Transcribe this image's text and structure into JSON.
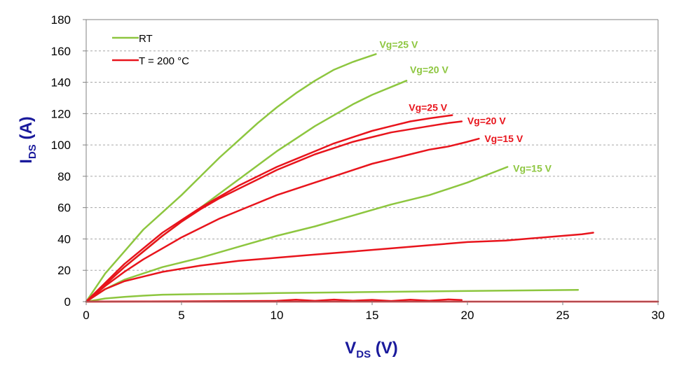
{
  "chart_data": {
    "type": "line",
    "xlabel": {
      "main": "V",
      "sub": "DS",
      "unit": " (V)"
    },
    "ylabel": {
      "main": "I",
      "sub": "DS",
      "unit": "  (A)"
    },
    "xlim": [
      0,
      30
    ],
    "ylim": [
      0,
      180
    ],
    "xticks": [
      0,
      5,
      10,
      15,
      20,
      25,
      30
    ],
    "yticks": [
      0,
      20,
      40,
      60,
      80,
      100,
      120,
      140,
      160,
      180
    ],
    "grid": "horizontal dashed",
    "legend_position": "top-left",
    "legend": [
      {
        "label": "RT",
        "color": "#8dc63f"
      },
      {
        "label": "T = 200 °C",
        "color": "#e8141c"
      }
    ],
    "series": [
      {
        "label": "Vg=25 V",
        "group": "RT",
        "color": "#8dc63f",
        "x": [
          0,
          1,
          2,
          3,
          4,
          5,
          6,
          7,
          8,
          9,
          10,
          11,
          12,
          13,
          14,
          15.2
        ],
        "y": [
          0,
          18,
          32,
          46,
          57,
          68,
          80,
          92,
          103,
          114,
          124,
          133,
          141,
          148,
          153,
          158
        ]
      },
      {
        "label": "Vg=20 V",
        "group": "RT",
        "color": "#8dc63f",
        "x": [
          0,
          1,
          2,
          3,
          4,
          5,
          6,
          7,
          8,
          9,
          10,
          11,
          12,
          13,
          14,
          15,
          16,
          16.8
        ],
        "y": [
          0,
          11,
          22,
          32,
          42,
          51,
          60,
          69,
          78,
          87,
          96,
          104,
          112,
          119,
          126,
          132,
          137,
          141
        ]
      },
      {
        "label": "Vg=15 V",
        "group": "RT",
        "color": "#8dc63f",
        "x": [
          0,
          1,
          2,
          3,
          4,
          5,
          6,
          8,
          10,
          12,
          14,
          16,
          18,
          20,
          22.1
        ],
        "y": [
          0,
          8,
          14,
          18,
          22,
          25,
          28,
          35,
          42,
          48,
          55,
          62,
          68,
          76,
          86
        ]
      },
      {
        "label": "",
        "group": "RT",
        "color": "#8dc63f",
        "x": [
          0,
          1,
          2,
          3,
          4,
          6,
          8,
          10,
          14,
          18,
          22,
          25.8
        ],
        "y": [
          0,
          2,
          3,
          3.8,
          4.4,
          4.8,
          5,
          5.5,
          6,
          6.5,
          7,
          7.5
        ]
      },
      {
        "label": "Vg=25 V",
        "group": "200C",
        "color": "#e8141c",
        "x": [
          0,
          1,
          2,
          3,
          4,
          5,
          6,
          7,
          8,
          9,
          10,
          11,
          12,
          13,
          14,
          15,
          16,
          17,
          18,
          19.2
        ],
        "y": [
          0,
          12,
          24,
          34,
          44,
          52,
          60,
          67,
          74,
          80,
          86,
          91,
          96,
          101,
          105,
          109,
          112,
          115,
          117,
          119
        ]
      },
      {
        "label": "Vg=20 V",
        "group": "200C",
        "color": "#e8141c",
        "x": [
          0,
          1,
          2,
          3,
          4,
          5,
          6,
          7,
          8,
          9,
          10,
          11,
          12,
          13,
          14,
          15,
          16,
          17,
          18,
          19,
          19.7
        ],
        "y": [
          0,
          11,
          22,
          32,
          42,
          51,
          59,
          66,
          72,
          78,
          84,
          89,
          94,
          98,
          102,
          105,
          108,
          110,
          112,
          114,
          115
        ]
      },
      {
        "label": "Vg=15 V",
        "group": "200C",
        "color": "#e8141c",
        "x": [
          0,
          1,
          2,
          3,
          4,
          5,
          6,
          7,
          8,
          9,
          10,
          11,
          12,
          13,
          14,
          15,
          16,
          17,
          18,
          19,
          20,
          20.6
        ],
        "y": [
          0,
          10,
          19,
          27,
          34,
          41,
          47,
          53,
          58,
          63,
          68,
          72,
          76,
          80,
          84,
          88,
          91,
          94,
          97,
          99,
          102,
          104
        ]
      },
      {
        "label": "",
        "group": "200C",
        "color": "#e8141c",
        "x": [
          0,
          1,
          2,
          3,
          4,
          5,
          6,
          8,
          10,
          12,
          14,
          16,
          18,
          20,
          22,
          24,
          26,
          26.6
        ],
        "y": [
          0,
          8,
          13,
          16,
          19,
          21,
          23,
          26,
          28,
          30,
          32,
          34,
          36,
          38,
          39,
          41,
          43,
          44
        ]
      },
      {
        "label": "",
        "group": "200C",
        "color": "#e8141c",
        "x": [
          0,
          5,
          10,
          11,
          12,
          13,
          14,
          15,
          16,
          17,
          18,
          19,
          19.7
        ],
        "y": [
          0,
          0.2,
          0.5,
          1.2,
          0.5,
          1.3,
          0.6,
          1.1,
          0.4,
          1.2,
          0.6,
          1.4,
          1
        ]
      },
      {
        "label": "",
        "group": "200C",
        "color": "#e8141c",
        "x": [
          0,
          30
        ],
        "y": [
          0,
          0
        ]
      }
    ]
  }
}
